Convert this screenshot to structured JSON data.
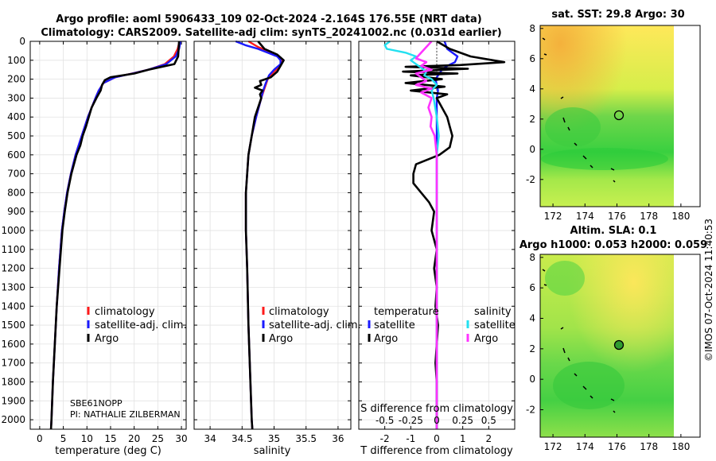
{
  "header": {
    "title_line1": "Argo profile: aoml 5906433_109 02-Oct-2024 -2.164S 176.55E (NRT data)",
    "title_line2": "Climatology: CARS2009. Satellite-adj clim: synTS_20241002.nc (0.031d earlier)"
  },
  "colors": {
    "climatology": "#ff1a1a",
    "satellite": "#1a1aff",
    "argo": "#000000",
    "sat_salinity": "#22e0f0",
    "argo_salinity": "#ff33ff"
  },
  "chart_data": [
    {
      "type": "line",
      "name": "temperature-profile",
      "xlabel": "temperature (deg C)",
      "xlim": [
        -2,
        31
      ],
      "ylim": [
        0,
        2050
      ],
      "xticks": [
        "0",
        "5",
        "10",
        "15",
        "20",
        "25",
        "30"
      ],
      "yticks": [
        "0",
        "100",
        "200",
        "300",
        "400",
        "500",
        "600",
        "700",
        "800",
        "900",
        "1000",
        "1100",
        "1200",
        "1300",
        "1400",
        "1500",
        "1600",
        "1700",
        "1800",
        "1900",
        "2000"
      ],
      "legend": [
        "climatology",
        "satellite-adj. clim.",
        "Argo"
      ],
      "annotation": [
        "SBE61NOPP",
        "PI: NATHALIE ZILBERMAN"
      ],
      "series": [
        {
          "name": "climatology",
          "depth": [
            0,
            40,
            80,
            120,
            150,
            170,
            190,
            220,
            260,
            300,
            400,
            500,
            600,
            700,
            800,
            900,
            1000,
            1200,
            1400,
            1600,
            1800,
            2000,
            2050
          ],
          "values": [
            29.6,
            29.2,
            28.4,
            26.5,
            23,
            19.5,
            16,
            13.5,
            12.5,
            11.8,
            10.2,
            8.9,
            7.6,
            6.6,
            5.8,
            5.2,
            4.7,
            4.1,
            3.6,
            3.2,
            2.8,
            2.5,
            2.4
          ]
        },
        {
          "name": "satellite",
          "depth": [
            0,
            40,
            80,
            120,
            150,
            170,
            190,
            220,
            260,
            300,
            400,
            500,
            600,
            700,
            800,
            900,
            1000,
            1200,
            1400,
            1600,
            1800,
            2000,
            2050
          ],
          "values": [
            29.8,
            29.5,
            28.8,
            26.8,
            23,
            19.6,
            16,
            13.5,
            12.5,
            11.8,
            10.2,
            8.9,
            7.6,
            6.6,
            5.8,
            5.2,
            4.7,
            4.1,
            3.6,
            3.2,
            2.8,
            2.5,
            2.4
          ]
        },
        {
          "name": "Argo",
          "depth": [
            0,
            40,
            80,
            120,
            150,
            170,
            190,
            205,
            230,
            260,
            300,
            350,
            400,
            450,
            500,
            550,
            600,
            700,
            800,
            900,
            1000,
            1200,
            1400,
            1600,
            1800,
            2000,
            2050
          ],
          "values": [
            29.5,
            29.4,
            29.3,
            28.5,
            23,
            20,
            15,
            13.8,
            13.2,
            12.9,
            12,
            11,
            10.4,
            9.8,
            9.1,
            8.6,
            7.8,
            6.7,
            5.9,
            5.3,
            4.8,
            4.2,
            3.6,
            3.2,
            2.8,
            2.5,
            2.4
          ]
        }
      ]
    },
    {
      "type": "line",
      "name": "salinity-profile",
      "xlabel": "salinity",
      "xlim": [
        33.75,
        36.2
      ],
      "ylim": [
        0,
        2050
      ],
      "xticks": [
        "34",
        "34.5",
        "35",
        "35.5",
        "36"
      ],
      "legend": [
        "climatology",
        "satellite-adj. clim.",
        "Argo"
      ],
      "series": [
        {
          "name": "climatology",
          "depth": [
            0,
            30,
            60,
            90,
            110,
            130,
            160,
            200,
            250,
            300,
            400,
            500,
            600,
            800,
            1000,
            1200,
            1500,
            2000,
            2050
          ],
          "values": [
            34.6,
            34.75,
            34.95,
            35.1,
            35.12,
            35.1,
            35.0,
            34.9,
            34.85,
            34.8,
            34.72,
            34.65,
            34.6,
            34.56,
            34.56,
            34.58,
            34.6,
            34.65,
            34.66
          ]
        },
        {
          "name": "satellite",
          "depth": [
            0,
            20,
            40,
            60,
            80,
            100,
            120,
            150,
            180,
            220,
            260,
            300,
            400,
            500,
            600,
            800,
            1000,
            1200,
            1500,
            2000,
            2050
          ],
          "values": [
            34.4,
            34.55,
            34.75,
            34.9,
            35.05,
            35.1,
            35.1,
            35.0,
            34.92,
            34.87,
            34.83,
            34.8,
            34.72,
            34.65,
            34.6,
            34.56,
            34.56,
            34.58,
            34.6,
            34.65,
            34.66
          ]
        },
        {
          "name": "Argo",
          "depth": [
            0,
            40,
            70,
            100,
            130,
            160,
            190,
            210,
            230,
            245,
            260,
            280,
            300,
            350,
            400,
            500,
            600,
            800,
            1000,
            1200,
            1500,
            2000,
            2050
          ],
          "values": [
            34.75,
            34.85,
            35.05,
            35.15,
            35.1,
            35.05,
            34.95,
            34.78,
            34.8,
            34.7,
            34.82,
            34.78,
            34.8,
            34.75,
            34.7,
            34.65,
            34.6,
            34.56,
            34.56,
            34.58,
            34.6,
            34.65,
            34.66
          ]
        }
      ]
    },
    {
      "type": "line",
      "name": "difference-profile",
      "xlabel": "T difference from climatology",
      "xlabel_top": "S difference from climatology",
      "xlim": [
        -3,
        3
      ],
      "ylim": [
        0,
        2050
      ],
      "xticks": [
        "-2",
        "-1",
        "0",
        "1",
        "2"
      ],
      "xticks_s": [
        "-0.5",
        "-0.25",
        "0",
        "0.25",
        "0.5"
      ],
      "legend_left_title": "temperature",
      "legend_right_title": "salinity",
      "legend_left": [
        "satellite",
        "Argo"
      ],
      "legend_right": [
        "satellite",
        "Argo"
      ],
      "series": [
        {
          "name": "satellite-T",
          "depth": [
            0,
            40,
            80,
            110,
            130,
            150,
            170,
            190,
            200,
            230,
            260,
            300,
            400,
            500,
            600,
            800,
            1000,
            1200,
            1500,
            1800,
            2000,
            2050
          ],
          "values": [
            0.3,
            0.4,
            0.8,
            0.7,
            0.4,
            0.2,
            0.1,
            0.0,
            -0.05,
            0.0,
            0.05,
            0.0,
            0.0,
            0.0,
            0.0,
            0.0,
            0.0,
            0.0,
            0.0,
            0.0,
            0.0,
            0.0
          ]
        },
        {
          "name": "Argo-T",
          "depth": [
            0,
            40,
            80,
            110,
            125,
            135,
            145,
            160,
            170,
            180,
            200,
            220,
            240,
            260,
            280,
            300,
            350,
            400,
            450,
            500,
            560,
            600,
            650,
            700,
            750,
            800,
            850,
            900,
            1000,
            1100,
            1200,
            1300,
            1400,
            1500,
            1600,
            1700,
            1800,
            1900,
            2000,
            2050
          ],
          "values": [
            0.0,
            0.5,
            1.3,
            2.6,
            0.9,
            -1.2,
            1.2,
            -1.3,
            0.8,
            -1.0,
            0.2,
            -1.2,
            0.3,
            -1.0,
            0.4,
            0.0,
            0.2,
            0.4,
            0.5,
            0.6,
            0.5,
            0.1,
            -0.8,
            -0.9,
            -0.9,
            -0.6,
            -0.3,
            -0.1,
            -0.2,
            0.0,
            -0.1,
            0.0,
            -0.05,
            0.05,
            0.0,
            -0.05,
            0.0,
            0.0,
            0.0,
            0.0
          ]
        },
        {
          "name": "satellite-S",
          "depth": [
            0,
            20,
            40,
            60,
            80,
            100,
            120,
            140,
            160,
            180,
            200,
            230,
            260,
            300,
            400,
            500,
            600,
            800,
            1000,
            1500,
            2000,
            2050
          ],
          "values": [
            -0.45,
            -0.5,
            -0.48,
            -0.3,
            -0.2,
            -0.25,
            -0.2,
            -0.15,
            -0.1,
            -0.12,
            -0.05,
            0.0,
            -0.05,
            -0.03,
            0.0,
            0.02,
            0.0,
            0.0,
            0.0,
            0.0,
            0.0,
            0.0
          ]
        },
        {
          "name": "Argo-S",
          "depth": [
            0,
            30,
            60,
            90,
            110,
            130,
            150,
            170,
            190,
            210,
            230,
            250,
            270,
            300,
            350,
            400,
            450,
            500,
            600,
            700,
            800,
            900,
            1000,
            1200,
            1500,
            1800,
            2000,
            2050
          ],
          "values": [
            -0.05,
            -0.1,
            -0.15,
            -0.2,
            -0.1,
            -0.15,
            -0.05,
            -0.2,
            -0.15,
            -0.1,
            -0.2,
            -0.05,
            -0.15,
            -0.05,
            -0.08,
            -0.05,
            -0.06,
            -0.02,
            0.0,
            0.0,
            0.0,
            0.0,
            0.0,
            0.0,
            0.0,
            0.0,
            0.0,
            0.0
          ]
        }
      ]
    }
  ],
  "maps": [
    {
      "name": "sst-map",
      "title": "sat. SST: 29.8 Argo: 30",
      "xticks": [
        "172",
        "174",
        "176",
        "178",
        "180"
      ],
      "yticks": [
        "8",
        "6",
        "4",
        "2",
        "0",
        "-2"
      ]
    },
    {
      "name": "sla-map",
      "title_line1": "Altim. SLA: 0.1",
      "title_line2": "Argo h1000: 0.053 h2000: 0.059",
      "xticks": [
        "172",
        "174",
        "176",
        "178",
        "180"
      ],
      "yticks": [
        "8",
        "6",
        "4",
        "2",
        "0",
        "-2"
      ]
    }
  ],
  "timestamp": "©IMOS 07-Oct-2024 11:40:53"
}
